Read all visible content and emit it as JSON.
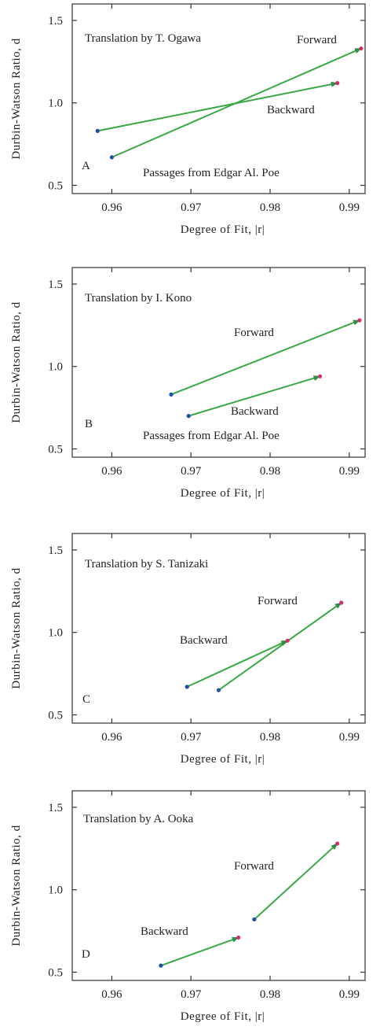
{
  "colors": {
    "arrow": "#3aa845",
    "arrowhead": "#2f8f46",
    "start_point": "#1f4fa8",
    "end_point": "#d0306a",
    "axis": "#333333"
  },
  "chart_data": [
    {
      "type": "scatter",
      "panel_letter": "A",
      "title": "Translation by T. Ogawa",
      "note": "Passages from Edgar Al. Poe",
      "xlabel": "Degree of Fit, |r|",
      "ylabel": "Durbin-Watson Ratio, d",
      "xlim": [
        0.955,
        0.992
      ],
      "ylim": [
        0.45,
        1.6
      ],
      "xticks": [
        0.96,
        0.97,
        0.98,
        0.99
      ],
      "xtick_labels": [
        "0.96",
        "0.97",
        "0.98",
        "0.99"
      ],
      "yticks": [
        0.5,
        1.0,
        1.5
      ],
      "ytick_labels": [
        "0.5",
        "1.0",
        "1.5"
      ],
      "grid": false,
      "series": [
        {
          "name": "Forward",
          "x": [
            0.96,
            0.9915
          ],
          "y": [
            0.67,
            1.33
          ]
        },
        {
          "name": "Backward",
          "x": [
            0.9582,
            0.9885
          ],
          "y": [
            0.83,
            1.12
          ]
        }
      ]
    },
    {
      "type": "scatter",
      "panel_letter": "B",
      "title": "Translation by I. Kono",
      "note": "Passages from Edgar Al. Poe",
      "xlabel": "Degree of Fit, |r|",
      "ylabel": "Durbin-Watson Ratio, d",
      "xlim": [
        0.955,
        0.992
      ],
      "ylim": [
        0.45,
        1.6
      ],
      "xticks": [
        0.96,
        0.97,
        0.98,
        0.99
      ],
      "xtick_labels": [
        "0.96",
        "0.97",
        "0.98",
        "0.99"
      ],
      "yticks": [
        0.5,
        1.0,
        1.5
      ],
      "ytick_labels": [
        "0.5",
        "1.0",
        "1.5"
      ],
      "grid": false,
      "series": [
        {
          "name": "Forward",
          "x": [
            0.9675,
            0.9913
          ],
          "y": [
            0.83,
            1.28
          ]
        },
        {
          "name": "Backward",
          "x": [
            0.9697,
            0.9863
          ],
          "y": [
            0.7,
            0.94
          ]
        }
      ]
    },
    {
      "type": "scatter",
      "panel_letter": "C",
      "title": "Translation by S. Tanizaki",
      "note": "",
      "xlabel": "Degree of Fit, |r|",
      "ylabel": "Durbin-Watson Ratio, d",
      "xlim": [
        0.955,
        0.992
      ],
      "ylim": [
        0.45,
        1.6
      ],
      "xticks": [
        0.96,
        0.97,
        0.98,
        0.99
      ],
      "xtick_labels": [
        "0.96",
        "0.97",
        "0.98",
        "0.99"
      ],
      "yticks": [
        0.5,
        1.0,
        1.5
      ],
      "ytick_labels": [
        "0.5",
        "1.0",
        "1.5"
      ],
      "grid": false,
      "series": [
        {
          "name": "Forward",
          "x": [
            0.9735,
            0.989
          ],
          "y": [
            0.65,
            1.18
          ]
        },
        {
          "name": "Backward",
          "x": [
            0.9695,
            0.9822
          ],
          "y": [
            0.67,
            0.95
          ]
        }
      ]
    },
    {
      "type": "scatter",
      "panel_letter": "D",
      "title": "Translation by A. Ooka",
      "note": "",
      "xlabel": "Degree of Fit, |r|",
      "ylabel": "Durbin-Watson Ratio, d",
      "xlim": [
        0.955,
        0.992
      ],
      "ylim": [
        0.45,
        1.6
      ],
      "xticks": [
        0.96,
        0.97,
        0.98,
        0.99
      ],
      "xtick_labels": [
        "0.96",
        "0.97",
        "0.98",
        "0.99"
      ],
      "yticks": [
        0.5,
        1.0,
        1.5
      ],
      "ytick_labels": [
        "0.5",
        "1.0",
        "1.5"
      ],
      "grid": false,
      "series": [
        {
          "name": "Forward",
          "x": [
            0.978,
            0.9885
          ],
          "y": [
            0.82,
            1.28
          ]
        },
        {
          "name": "Backward",
          "x": [
            0.9662,
            0.976
          ],
          "y": [
            0.54,
            0.71
          ]
        }
      ]
    }
  ]
}
